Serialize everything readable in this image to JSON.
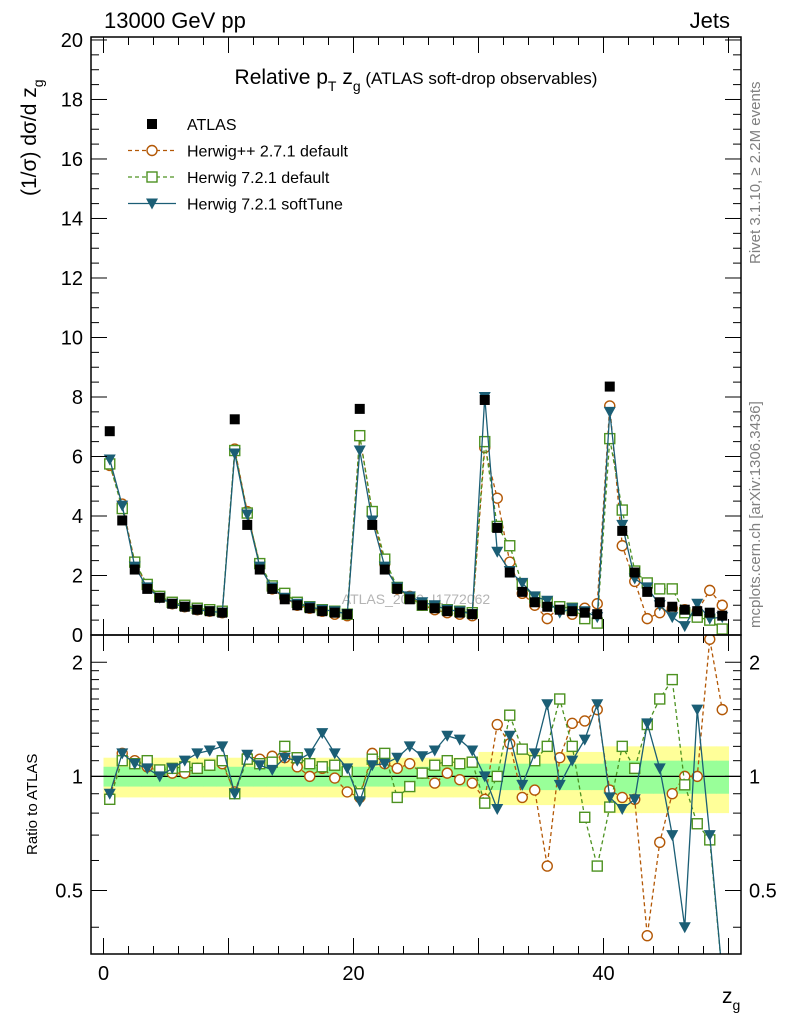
{
  "header": {
    "left": "13000 GeV pp",
    "right": "Jets"
  },
  "side_labels": {
    "rivet": "Rivet 3.1.10, ≥ 2.2M events",
    "mcplots": "mcplots.cern.ch [arXiv:1306.3436]"
  },
  "watermark": "ATLAS_2019_I1772062",
  "chart_data": [
    {
      "type": "line",
      "title_main": "Relative p",
      "title_sub_T": "T",
      "title_mid": " z",
      "title_sub_g": "g",
      "title_tail": " (ATLAS soft-drop observables)",
      "ylabel": "(1/σ) dσ/d z",
      "ylabel_sub": "g",
      "xlim": [
        -1,
        51
      ],
      "ylim": [
        0,
        20.1
      ],
      "yticks": [
        0,
        2,
        4,
        6,
        8,
        10,
        12,
        14,
        16,
        18,
        20
      ],
      "ytick_labels": [
        "0",
        "2",
        "4",
        "6",
        "8",
        "10",
        "12",
        "14",
        "16",
        "18",
        "20"
      ],
      "x": [
        0.5,
        1.5,
        2.5,
        3.5,
        4.5,
        5.5,
        6.5,
        7.5,
        8.5,
        9.5,
        10.5,
        11.5,
        12.5,
        13.5,
        14.5,
        15.5,
        16.5,
        17.5,
        18.5,
        19.5,
        20.5,
        21.5,
        22.5,
        23.5,
        24.5,
        25.5,
        26.5,
        27.5,
        28.5,
        29.5,
        30.5,
        31.5,
        32.5,
        33.5,
        34.5,
        35.5,
        36.5,
        37.5,
        38.5,
        39.5,
        40.5,
        41.5,
        42.5,
        43.5,
        44.5,
        45.5,
        46.5,
        47.5,
        48.5,
        49.5
      ],
      "legend_position": "top-left",
      "series": [
        {
          "name": "ATLAS",
          "color": "#000000",
          "marker": "square-filled",
          "values": [
            6.85,
            3.85,
            2.2,
            1.55,
            1.25,
            1.05,
            0.95,
            0.85,
            0.8,
            0.75,
            7.25,
            3.7,
            2.2,
            1.55,
            1.2,
            1.0,
            0.9,
            0.8,
            0.75,
            0.7,
            7.6,
            3.7,
            2.2,
            1.55,
            1.2,
            1.0,
            0.9,
            0.8,
            0.75,
            0.7,
            7.9,
            3.6,
            2.1,
            1.45,
            1.1,
            0.95,
            0.85,
            0.8,
            0.75,
            0.7,
            8.35,
            3.5,
            2.1,
            1.45,
            1.1,
            0.95,
            0.85,
            0.8,
            0.75,
            0.65
          ]
        },
        {
          "name": "Herwig++ 2.7.1 default",
          "color": "#b35806",
          "marker": "circle-open",
          "dash": "4,3",
          "values": [
            5.7,
            4.4,
            2.45,
            1.65,
            1.3,
            1.05,
            0.95,
            0.85,
            0.8,
            0.75,
            6.25,
            4.15,
            2.35,
            1.55,
            1.25,
            1.0,
            0.9,
            0.8,
            0.7,
            0.65,
            6.7,
            4.1,
            2.4,
            1.55,
            1.3,
            1.0,
            0.85,
            0.75,
            0.7,
            0.65,
            6.3,
            4.6,
            2.45,
            1.4,
            1.0,
            0.55,
            0.95,
            0.7,
            0.9,
            1.05,
            7.7,
            3.0,
            1.8,
            0.55,
            0.75,
            0.9,
            0.85,
            0.8,
            1.5,
            1.0
          ]
        },
        {
          "name": "Herwig 7.2.1 default",
          "color": "#4d9221",
          "marker": "square-open",
          "dash": "4,3",
          "values": [
            5.75,
            4.25,
            2.45,
            1.7,
            1.3,
            1.1,
            1.0,
            0.9,
            0.85,
            0.8,
            6.2,
            4.1,
            2.4,
            1.65,
            1.4,
            1.1,
            0.95,
            0.85,
            0.8,
            0.7,
            6.7,
            4.15,
            2.55,
            1.6,
            1.25,
            1.0,
            0.95,
            0.85,
            0.8,
            0.75,
            6.5,
            3.65,
            3.0,
            1.7,
            1.25,
            1.1,
            0.95,
            0.9,
            0.55,
            0.4,
            6.6,
            4.2,
            2.15,
            1.75,
            1.55,
            1.55,
            0.75,
            0.6,
            0.5,
            0.2
          ]
        },
        {
          "name": "Herwig 7.2.1 softTune",
          "color": "#1b5e75",
          "marker": "triangle-down-filled",
          "values": [
            5.9,
            4.35,
            2.3,
            1.6,
            1.25,
            1.05,
            0.95,
            0.85,
            0.8,
            0.75,
            6.1,
            4.05,
            2.3,
            1.6,
            1.25,
            1.05,
            0.95,
            0.85,
            0.8,
            0.7,
            6.2,
            3.85,
            2.3,
            1.6,
            1.3,
            1.1,
            1.0,
            0.85,
            0.8,
            0.7,
            8.0,
            2.8,
            2.15,
            1.75,
            1.3,
            1.15,
            0.75,
            0.9,
            0.8,
            0.6,
            7.5,
            3.7,
            1.9,
            1.6,
            1.0,
            0.6,
            0.3,
            1.05,
            0.55,
            0.6
          ]
        }
      ]
    },
    {
      "type": "line",
      "ylabel": "Ratio to ATLAS",
      "xlabel": "z",
      "xlabel_sub": "g",
      "xlim": [
        -1,
        51
      ],
      "ylim": [
        0.34,
        2.36
      ],
      "log_scale_y": true,
      "yticks": [
        0.5,
        1,
        2
      ],
      "ytick_labels": [
        "0.5",
        "1",
        "2"
      ],
      "xticks": [
        0,
        20,
        40
      ],
      "xtick_labels": [
        "0",
        "20",
        "40"
      ],
      "reference_line": 1,
      "band_colors": {
        "inner": "#99ff99",
        "outer": "#ffff99"
      },
      "band_inner_halfwidth": [
        0.06,
        0.06,
        0.06,
        0.06,
        0.06,
        0.06,
        0.06,
        0.06,
        0.06,
        0.06,
        0.06,
        0.06,
        0.06,
        0.06,
        0.06,
        0.06,
        0.06,
        0.06,
        0.06,
        0.06,
        0.06,
        0.06,
        0.06,
        0.06,
        0.06,
        0.06,
        0.06,
        0.06,
        0.06,
        0.06,
        0.08,
        0.08,
        0.08,
        0.08,
        0.08,
        0.08,
        0.08,
        0.08,
        0.08,
        0.08,
        0.1,
        0.1,
        0.1,
        0.1,
        0.1,
        0.1,
        0.1,
        0.1,
        0.1,
        0.1
      ],
      "band_outer_halfwidth": [
        0.12,
        0.12,
        0.12,
        0.12,
        0.12,
        0.12,
        0.12,
        0.12,
        0.12,
        0.12,
        0.12,
        0.12,
        0.12,
        0.12,
        0.12,
        0.12,
        0.12,
        0.12,
        0.12,
        0.12,
        0.12,
        0.12,
        0.12,
        0.12,
        0.12,
        0.12,
        0.12,
        0.12,
        0.12,
        0.12,
        0.16,
        0.16,
        0.16,
        0.16,
        0.16,
        0.16,
        0.16,
        0.16,
        0.16,
        0.16,
        0.2,
        0.2,
        0.2,
        0.2,
        0.2,
        0.2,
        0.2,
        0.2,
        0.2,
        0.2
      ],
      "series": [
        {
          "name": "Herwig++ 2.7.1 default",
          "color": "#b35806",
          "marker": "circle-open",
          "dash": "4,3",
          "values": [
            0.88,
            1.15,
            1.1,
            1.06,
            1.03,
            1.02,
            1.02,
            1.05,
            1.07,
            1.08,
            0.91,
            1.13,
            1.11,
            1.13,
            1.12,
            1.06,
            1.0,
            1.05,
            0.99,
            0.91,
            0.88,
            1.15,
            1.08,
            1.05,
            1.08,
            1.02,
            0.96,
            1.02,
            0.98,
            0.96,
            0.87,
            1.37,
            1.22,
            0.88,
            0.92,
            0.58,
            1.12,
            1.38,
            1.4,
            1.5,
            0.92,
            0.88,
            0.87,
            0.38,
            0.67,
            0.9,
            1.0,
            1.0,
            2.3,
            1.5
          ]
        },
        {
          "name": "Herwig 7.2.1 default",
          "color": "#4d9221",
          "marker": "square-open",
          "dash": "4,3",
          "values": [
            0.87,
            1.1,
            1.08,
            1.1,
            1.04,
            1.05,
            1.06,
            1.05,
            1.07,
            1.1,
            0.9,
            1.11,
            1.08,
            1.09,
            1.2,
            1.12,
            1.08,
            1.06,
            1.07,
            1.03,
            0.9,
            1.11,
            1.15,
            0.88,
            0.94,
            1.02,
            1.07,
            1.1,
            1.08,
            1.09,
            0.85,
            1.0,
            1.45,
            1.18,
            1.1,
            1.2,
            1.6,
            1.2,
            0.78,
            0.58,
            0.83,
            1.2,
            1.05,
            1.37,
            1.6,
            1.8,
            0.95,
            0.75,
            0.68,
            0.3
          ]
        },
        {
          "name": "Herwig 7.2.1 softTune",
          "color": "#1b5e75",
          "marker": "triangle-down-filled",
          "values": [
            0.9,
            1.15,
            1.08,
            1.05,
            1.0,
            1.05,
            1.1,
            1.15,
            1.17,
            1.2,
            0.9,
            1.14,
            1.07,
            1.04,
            1.12,
            1.1,
            1.15,
            1.3,
            1.15,
            1.05,
            0.86,
            1.07,
            1.08,
            1.12,
            1.2,
            1.13,
            1.17,
            1.28,
            1.25,
            1.17,
            1.0,
            0.82,
            1.28,
            0.95,
            1.15,
            1.55,
            0.95,
            1.1,
            1.25,
            1.55,
            0.88,
            0.82,
            0.87,
            1.38,
            1.05,
            0.7,
            0.4,
            1.5,
            0.7,
            0.3
          ]
        }
      ]
    }
  ]
}
